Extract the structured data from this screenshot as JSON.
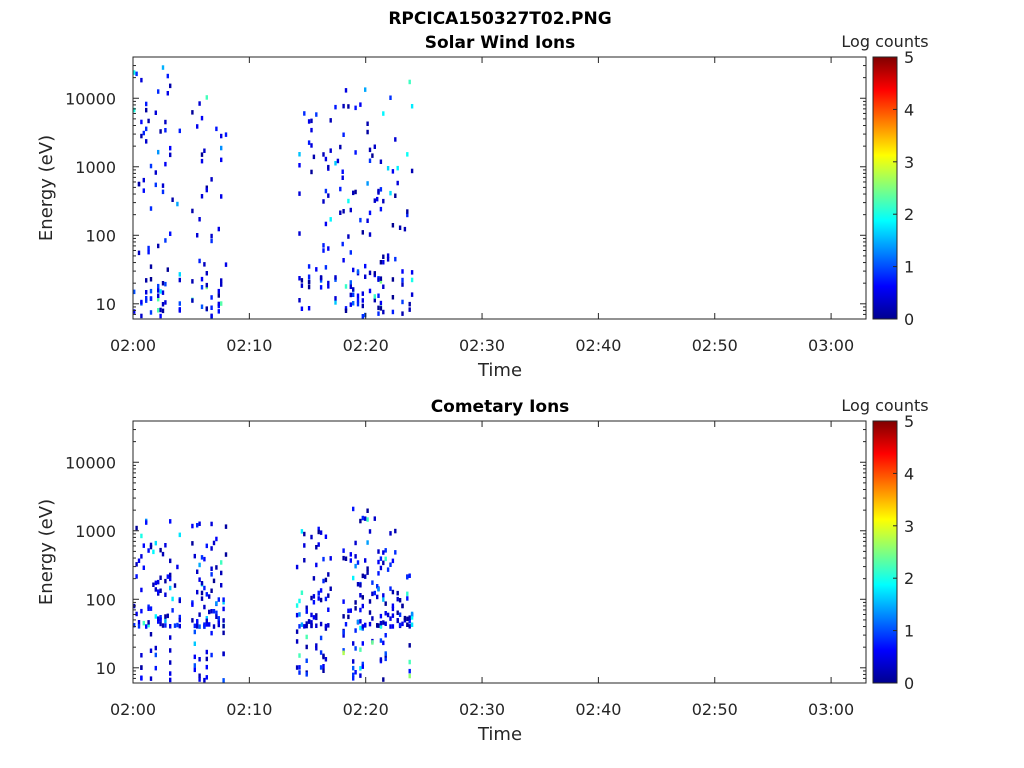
{
  "figure_title": "RPCICA150327T02.PNG",
  "colorbar": {
    "label": "Log counts",
    "ticks": [
      "0",
      "1",
      "2",
      "3",
      "4",
      "5"
    ],
    "range": [
      0,
      5
    ]
  },
  "chart_data": [
    {
      "type": "heatmap",
      "title": "Solar Wind Ions",
      "xlabel": "Time",
      "ylabel": "Energy (eV)",
      "x_ticks": [
        "02:00",
        "02:10",
        "02:20",
        "02:30",
        "02:40",
        "02:50",
        "03:00"
      ],
      "y_ticks": [
        "10",
        "100",
        "1000",
        "10000"
      ],
      "y_scale": "log",
      "xlim": [
        "02:00",
        "03:03"
      ],
      "ylim": [
        6,
        40000
      ],
      "data_coverage": "02:00–02:24",
      "bursts": [
        {
          "start": "02:00",
          "end": "02:04",
          "energy_max": 30000
        },
        {
          "start": "02:05",
          "end": "02:08",
          "energy_max": 12000
        },
        {
          "start": "02:14",
          "end": "02:18",
          "energy_max": 8000
        },
        {
          "start": "02:18",
          "end": "02:21",
          "energy_max": 15000
        },
        {
          "start": "02:21",
          "end": "02:24",
          "energy_max": 20000
        }
      ]
    },
    {
      "type": "heatmap",
      "title": "Cometary Ions",
      "xlabel": "Time",
      "ylabel": "Energy (eV)",
      "x_ticks": [
        "02:00",
        "02:10",
        "02:20",
        "02:30",
        "02:40",
        "02:50",
        "03:00"
      ],
      "y_ticks": [
        "10",
        "100",
        "1000",
        "10000"
      ],
      "y_scale": "log",
      "xlim": [
        "02:00",
        "03:03"
      ],
      "ylim": [
        6,
        40000
      ],
      "data_coverage": "02:00–02:24",
      "bursts": [
        {
          "start": "02:00",
          "end": "02:04",
          "energy_max": 1400
        },
        {
          "start": "02:05",
          "end": "02:08",
          "energy_max": 1400
        },
        {
          "start": "02:14",
          "end": "02:17",
          "energy_max": 1200
        },
        {
          "start": "02:18",
          "end": "02:21",
          "energy_max": 2500
        },
        {
          "start": "02:21",
          "end": "02:24",
          "energy_max": 1000
        }
      ]
    }
  ]
}
